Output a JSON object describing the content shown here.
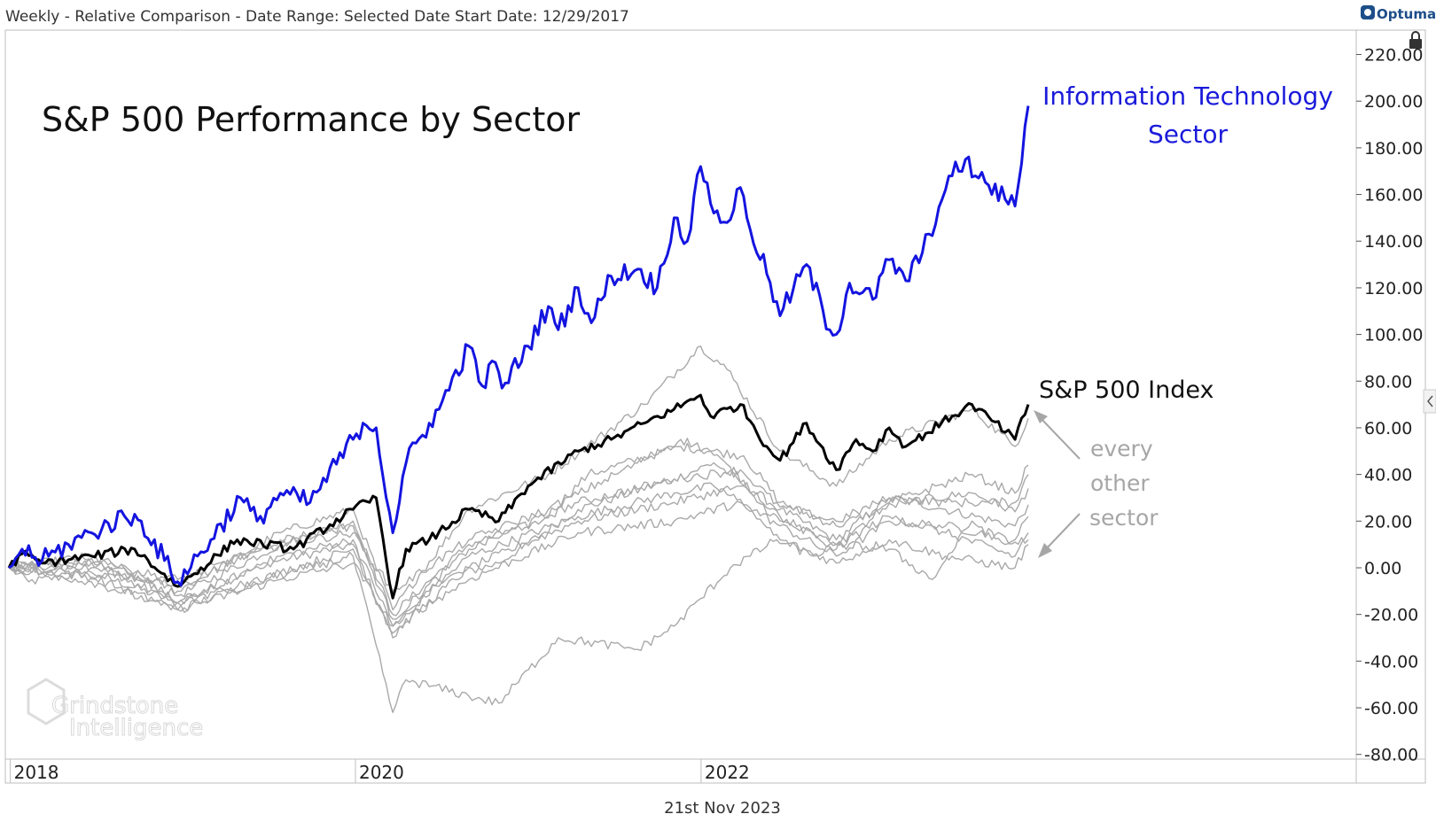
{
  "header": {
    "text": "Weekly - Relative Comparison - Date Range: Selected Date  Start Date: 12/29/2017",
    "logo": "Optuma"
  },
  "footer": {
    "date": "21st Nov 2023"
  },
  "watermark": {
    "line1": "Grindstone",
    "line2": "Intelligence"
  },
  "colors": {
    "it": "#1414e0",
    "sp500": "#000000",
    "other": "#a9a9a9"
  },
  "icons": [
    "lock-icon",
    "chevron-left-icon"
  ],
  "chart_data": {
    "type": "line",
    "title": "S&P 500 Performance by Sector",
    "ylim": [
      -80,
      225
    ],
    "xlim": [
      "2017-12-29",
      "2023-11-24"
    ],
    "y_ticks": [
      "220.00",
      "200.00",
      "180.00",
      "160.00",
      "140.00",
      "120.00",
      "100.00",
      "80.00",
      "60.00",
      "40.00",
      "20.00",
      "0.00",
      "-20.00",
      "-40.00",
      "-60.00",
      "-80.00"
    ],
    "x_ticks": [
      {
        "label": "2018",
        "date": "2018-01-01"
      },
      {
        "label": "2020",
        "date": "2020-01-01"
      },
      {
        "label": "2022",
        "date": "2022-01-01"
      }
    ],
    "annotations": {
      "it_line1": "Information Technology",
      "it_line2": "Sector",
      "sp500": "S&P 500 Index",
      "other_line1": "every",
      "other_line2": "other",
      "other_line3": "sector"
    },
    "series": [
      {
        "key": "it",
        "points": [
          [
            "2017-12-29",
            0
          ],
          [
            "2018-01-26",
            8
          ],
          [
            "2018-03-09",
            3
          ],
          [
            "2018-05-04",
            10
          ],
          [
            "2018-06-22",
            15
          ],
          [
            "2018-08-31",
            22
          ],
          [
            "2018-10-05",
            20
          ],
          [
            "2018-12-21",
            -6
          ],
          [
            "2019-03-01",
            12
          ],
          [
            "2019-05-03",
            30
          ],
          [
            "2019-06-07",
            20
          ],
          [
            "2019-07-26",
            32
          ],
          [
            "2019-09-27",
            28
          ],
          [
            "2019-12-27",
            55
          ],
          [
            "2020-01-17",
            62
          ],
          [
            "2020-02-14",
            60
          ],
          [
            "2020-03-20",
            15
          ],
          [
            "2020-04-17",
            45
          ],
          [
            "2020-06-05",
            62
          ],
          [
            "2020-06-26",
            68
          ],
          [
            "2020-08-28",
            95
          ],
          [
            "2020-09-25",
            78
          ],
          [
            "2020-10-23",
            88
          ],
          [
            "2020-11-06",
            77
          ],
          [
            "2020-12-31",
            95
          ],
          [
            "2021-02-12",
            112
          ],
          [
            "2021-03-05",
            102
          ],
          [
            "2021-04-16",
            120
          ],
          [
            "2021-05-14",
            105
          ],
          [
            "2021-06-25",
            125
          ],
          [
            "2021-08-20",
            128
          ],
          [
            "2021-09-30",
            120
          ],
          [
            "2021-11-05",
            150
          ],
          [
            "2021-12-03",
            140
          ],
          [
            "2021-12-31",
            172
          ],
          [
            "2022-01-14",
            165
          ],
          [
            "2022-01-28",
            152
          ],
          [
            "2022-02-25",
            148
          ],
          [
            "2022-03-25",
            163
          ],
          [
            "2022-04-08",
            150
          ],
          [
            "2022-05-20",
            126
          ],
          [
            "2022-06-17",
            108
          ],
          [
            "2022-07-29",
            125
          ],
          [
            "2022-08-12",
            130
          ],
          [
            "2022-09-30",
            102
          ],
          [
            "2022-10-14",
            100
          ],
          [
            "2022-11-11",
            122
          ],
          [
            "2022-12-30",
            115
          ],
          [
            "2023-02-03",
            132
          ],
          [
            "2023-03-10",
            123
          ],
          [
            "2023-04-14",
            135
          ],
          [
            "2023-05-26",
            158
          ],
          [
            "2023-06-16",
            168
          ],
          [
            "2023-07-14",
            175
          ],
          [
            "2023-08-04",
            168
          ],
          [
            "2023-09-01",
            164
          ],
          [
            "2023-10-06",
            158
          ],
          [
            "2023-10-27",
            155
          ],
          [
            "2023-11-24",
            198
          ]
        ]
      },
      {
        "key": "sp500",
        "points": [
          [
            "2017-12-29",
            0
          ],
          [
            "2018-01-26",
            6
          ],
          [
            "2018-03-09",
            2
          ],
          [
            "2018-06-22",
            5
          ],
          [
            "2018-09-21",
            8
          ],
          [
            "2018-12-21",
            -8
          ],
          [
            "2019-04-26",
            12
          ],
          [
            "2019-08-23",
            8
          ],
          [
            "2019-12-27",
            25
          ],
          [
            "2020-02-14",
            30
          ],
          [
            "2020-03-20",
            -13
          ],
          [
            "2020-04-17",
            8
          ],
          [
            "2020-06-05",
            12
          ],
          [
            "2020-08-28",
            25
          ],
          [
            "2020-10-30",
            20
          ],
          [
            "2020-12-31",
            35
          ],
          [
            "2021-04-16",
            50
          ],
          [
            "2021-06-25",
            55
          ],
          [
            "2021-09-03",
            62
          ],
          [
            "2021-11-05",
            68
          ],
          [
            "2021-12-31",
            74
          ],
          [
            "2022-01-21",
            65
          ],
          [
            "2022-03-25",
            70
          ],
          [
            "2022-05-20",
            52
          ],
          [
            "2022-06-17",
            46
          ],
          [
            "2022-08-12",
            62
          ],
          [
            "2022-10-14",
            42
          ],
          [
            "2022-11-25",
            55
          ],
          [
            "2022-12-30",
            50
          ],
          [
            "2023-02-03",
            60
          ],
          [
            "2023-03-10",
            52
          ],
          [
            "2023-06-16",
            65
          ],
          [
            "2023-07-28",
            70
          ],
          [
            "2023-10-27",
            55
          ],
          [
            "2023-11-24",
            70
          ]
        ]
      },
      {
        "key": "other",
        "points": [
          [
            "2017-12-29",
            0
          ],
          [
            "2018-02-09",
            -6
          ],
          [
            "2018-06-22",
            -2
          ],
          [
            "2018-12-21",
            -15
          ],
          [
            "2019-06-28",
            2
          ],
          [
            "2019-12-27",
            10
          ],
          [
            "2020-03-20",
            -30
          ],
          [
            "2020-06-26",
            -5
          ],
          [
            "2020-10-30",
            2
          ],
          [
            "2021-04-16",
            25
          ],
          [
            "2021-11-05",
            38
          ],
          [
            "2022-01-28",
            45
          ],
          [
            "2022-06-17",
            25
          ],
          [
            "2022-10-14",
            12
          ],
          [
            "2023-02-03",
            30
          ],
          [
            "2023-06-02",
            25
          ],
          [
            "2023-10-27",
            18
          ],
          [
            "2023-11-24",
            27
          ]
        ]
      },
      {
        "key": "other",
        "points": [
          [
            "2017-12-29",
            0
          ],
          [
            "2018-06-22",
            4
          ],
          [
            "2018-12-21",
            -12
          ],
          [
            "2019-07-26",
            10
          ],
          [
            "2019-12-27",
            20
          ],
          [
            "2020-03-20",
            -20
          ],
          [
            "2020-08-28",
            10
          ],
          [
            "2021-01-29",
            20
          ],
          [
            "2021-05-07",
            40
          ],
          [
            "2021-11-19",
            52
          ],
          [
            "2022-04-01",
            48
          ],
          [
            "2022-06-17",
            28
          ],
          [
            "2022-10-14",
            18
          ],
          [
            "2023-03-03",
            28
          ],
          [
            "2023-07-28",
            32
          ],
          [
            "2023-10-27",
            24
          ],
          [
            "2023-11-24",
            34
          ]
        ]
      },
      {
        "key": "other",
        "points": [
          [
            "2017-12-29",
            0
          ],
          [
            "2018-06-22",
            5
          ],
          [
            "2018-12-21",
            -10
          ],
          [
            "2019-07-26",
            15
          ],
          [
            "2019-12-27",
            25
          ],
          [
            "2020-03-20",
            -18
          ],
          [
            "2020-08-28",
            25
          ],
          [
            "2021-02-12",
            40
          ],
          [
            "2021-09-03",
            70
          ],
          [
            "2021-12-31",
            95
          ],
          [
            "2022-02-25",
            85
          ],
          [
            "2022-06-17",
            50
          ],
          [
            "2022-10-14",
            35
          ],
          [
            "2023-02-03",
            55
          ],
          [
            "2023-07-28",
            68
          ],
          [
            "2023-10-27",
            52
          ],
          [
            "2023-11-24",
            64
          ]
        ]
      },
      {
        "key": "other",
        "points": [
          [
            "2017-12-29",
            0
          ],
          [
            "2018-06-22",
            2
          ],
          [
            "2018-12-21",
            -15
          ],
          [
            "2019-07-26",
            5
          ],
          [
            "2019-12-27",
            12
          ],
          [
            "2020-03-20",
            -25
          ],
          [
            "2020-08-28",
            5
          ],
          [
            "2021-04-16",
            22
          ],
          [
            "2021-11-05",
            32
          ],
          [
            "2022-01-28",
            35
          ],
          [
            "2022-06-17",
            18
          ],
          [
            "2022-10-14",
            5
          ],
          [
            "2023-02-03",
            20
          ],
          [
            "2023-06-02",
            18
          ],
          [
            "2023-10-27",
            12
          ],
          [
            "2023-11-24",
            22
          ]
        ]
      },
      {
        "key": "other",
        "points": [
          [
            "2017-12-29",
            0
          ],
          [
            "2018-06-22",
            -4
          ],
          [
            "2018-12-21",
            -18
          ],
          [
            "2019-07-26",
            -2
          ],
          [
            "2019-12-27",
            8
          ],
          [
            "2020-03-20",
            -28
          ],
          [
            "2020-08-28",
            0
          ],
          [
            "2021-04-16",
            20
          ],
          [
            "2021-11-05",
            28
          ],
          [
            "2022-03-25",
            35
          ],
          [
            "2022-06-17",
            20
          ],
          [
            "2022-10-14",
            10
          ],
          [
            "2023-02-03",
            22
          ],
          [
            "2023-06-02",
            15
          ],
          [
            "2023-10-27",
            5
          ],
          [
            "2023-11-24",
            15
          ]
        ]
      },
      {
        "key": "other",
        "points": [
          [
            "2017-12-29",
            0
          ],
          [
            "2018-06-22",
            0
          ],
          [
            "2018-12-21",
            -8
          ],
          [
            "2019-07-26",
            12
          ],
          [
            "2019-12-27",
            18
          ],
          [
            "2020-03-20",
            -22
          ],
          [
            "2020-08-28",
            8
          ],
          [
            "2021-04-16",
            28
          ],
          [
            "2021-11-05",
            38
          ],
          [
            "2022-03-25",
            42
          ],
          [
            "2022-06-17",
            26
          ],
          [
            "2022-10-14",
            20
          ],
          [
            "2023-02-03",
            30
          ],
          [
            "2023-06-02",
            28
          ],
          [
            "2023-10-27",
            28
          ],
          [
            "2023-11-24",
            40
          ]
        ]
      },
      {
        "key": "other",
        "points": [
          [
            "2017-12-29",
            0
          ],
          [
            "2018-06-22",
            -6
          ],
          [
            "2018-12-21",
            -18
          ],
          [
            "2019-07-26",
            -5
          ],
          [
            "2019-12-27",
            2
          ],
          [
            "2020-03-20",
            -25
          ],
          [
            "2020-08-28",
            -5
          ],
          [
            "2021-04-16",
            15
          ],
          [
            "2021-11-05",
            20
          ],
          [
            "2022-03-25",
            28
          ],
          [
            "2022-06-17",
            12
          ],
          [
            "2022-10-14",
            2
          ],
          [
            "2023-02-03",
            12
          ],
          [
            "2023-06-02",
            5
          ],
          [
            "2023-10-27",
            0
          ],
          [
            "2023-11-24",
            10
          ]
        ]
      },
      {
        "key": "other",
        "points": [
          [
            "2017-12-29",
            0
          ],
          [
            "2018-06-22",
            2
          ],
          [
            "2018-12-21",
            -5
          ],
          [
            "2019-07-26",
            10
          ],
          [
            "2019-12-27",
            15
          ],
          [
            "2020-03-20",
            -10
          ],
          [
            "2020-08-28",
            12
          ],
          [
            "2021-02-12",
            25
          ],
          [
            "2021-08-20",
            45
          ],
          [
            "2021-11-19",
            55
          ],
          [
            "2022-01-21",
            50
          ],
          [
            "2022-06-17",
            22
          ],
          [
            "2022-10-14",
            8
          ],
          [
            "2023-02-03",
            28
          ],
          [
            "2023-07-28",
            40
          ],
          [
            "2023-10-27",
            32
          ],
          [
            "2023-11-24",
            44
          ]
        ]
      },
      {
        "key": "other",
        "points": [
          [
            "2017-12-29",
            0
          ],
          [
            "2018-10-05",
            -5
          ],
          [
            "2018-12-21",
            -15
          ],
          [
            "2019-04-26",
            -8
          ],
          [
            "2019-12-27",
            5
          ],
          [
            "2020-03-20",
            -62
          ],
          [
            "2020-04-17",
            -48
          ],
          [
            "2020-08-28",
            -55
          ],
          [
            "2020-10-30",
            -58
          ],
          [
            "2021-03-05",
            -30
          ],
          [
            "2021-08-20",
            -35
          ],
          [
            "2021-11-05",
            -25
          ],
          [
            "2022-03-04",
            0
          ],
          [
            "2022-06-10",
            12
          ],
          [
            "2022-08-26",
            5
          ],
          [
            "2022-10-14",
            10
          ],
          [
            "2023-02-03",
            8
          ],
          [
            "2023-05-05",
            -5
          ],
          [
            "2023-07-28",
            20
          ],
          [
            "2023-10-06",
            10
          ],
          [
            "2023-11-24",
            12
          ]
        ]
      }
    ]
  }
}
